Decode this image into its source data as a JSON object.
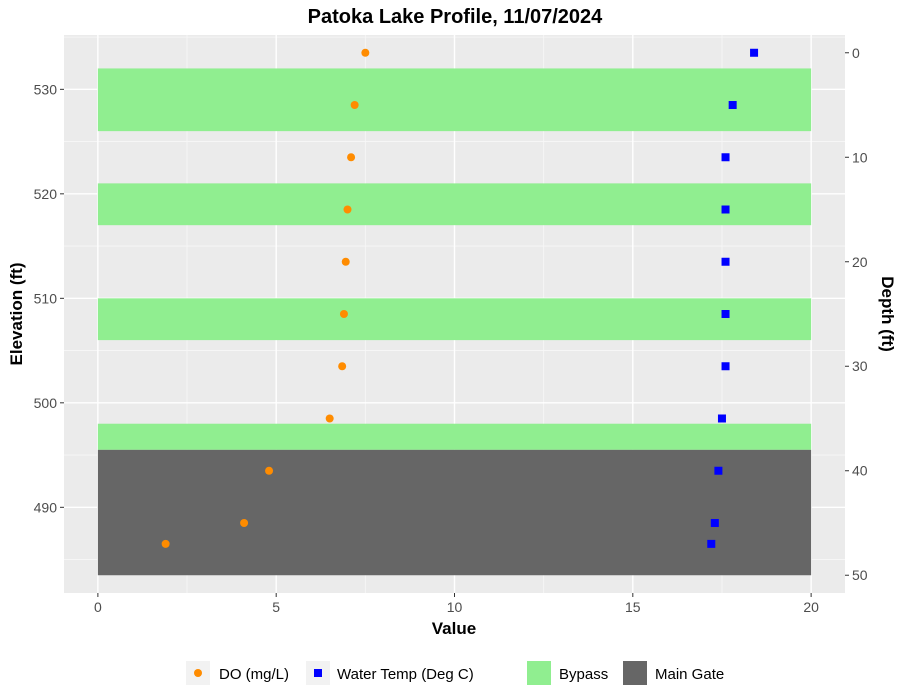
{
  "chart_data": {
    "type": "scatter",
    "title": "Patoka Lake Profile,  11/07/2024",
    "xlabel": "Value",
    "ylabel": "Elevation (ft)",
    "y2label": "Depth (ft)",
    "xlim": [
      -0.95,
      20.95
    ],
    "ylim": [
      481.8,
      535.2
    ],
    "y2lim": [
      0,
      50
    ],
    "x_ticks": [
      0,
      5,
      10,
      15,
      20
    ],
    "y_ticks": [
      490,
      500,
      510,
      520,
      530
    ],
    "y2_ticks": [
      0,
      10,
      20,
      30,
      40,
      50
    ],
    "surface_elevation": 533.5,
    "grid": true,
    "legend_position": "bottom",
    "bands": [
      {
        "name": "Bypass",
        "ymin": 526,
        "ymax": 532,
        "color": "#90EE90"
      },
      {
        "name": "Bypass",
        "ymin": 517,
        "ymax": 521,
        "color": "#90EE90"
      },
      {
        "name": "Bypass",
        "ymin": 506,
        "ymax": 510,
        "color": "#90EE90"
      },
      {
        "name": "Bypass",
        "ymin": 495.5,
        "ymax": 498,
        "color": "#90EE90"
      },
      {
        "name": "Main Gate",
        "ymin": 483.5,
        "ymax": 495.5,
        "color": "#666666"
      }
    ],
    "band_xrange": [
      0,
      20
    ],
    "series": [
      {
        "name": "DO (mg/L)",
        "color": "#FF8C00",
        "marker": "circle",
        "points": [
          {
            "x": 7.5,
            "y": 533.5
          },
          {
            "x": 7.2,
            "y": 528.5
          },
          {
            "x": 7.1,
            "y": 523.5
          },
          {
            "x": 7.0,
            "y": 518.5
          },
          {
            "x": 6.95,
            "y": 513.5
          },
          {
            "x": 6.9,
            "y": 508.5
          },
          {
            "x": 6.85,
            "y": 503.5
          },
          {
            "x": 6.5,
            "y": 498.5
          },
          {
            "x": 4.8,
            "y": 493.5
          },
          {
            "x": 4.1,
            "y": 488.5
          },
          {
            "x": 1.9,
            "y": 486.5
          }
        ]
      },
      {
        "name": "Water Temp (Deg C)",
        "color": "#0000FF",
        "marker": "square",
        "points": [
          {
            "x": 18.4,
            "y": 533.5
          },
          {
            "x": 17.8,
            "y": 528.5
          },
          {
            "x": 17.6,
            "y": 523.5
          },
          {
            "x": 17.6,
            "y": 518.5
          },
          {
            "x": 17.6,
            "y": 513.5
          },
          {
            "x": 17.6,
            "y": 508.5
          },
          {
            "x": 17.6,
            "y": 503.5
          },
          {
            "x": 17.5,
            "y": 498.5
          },
          {
            "x": 17.4,
            "y": 493.5
          },
          {
            "x": 17.3,
            "y": 488.5
          },
          {
            "x": 17.2,
            "y": 486.5
          }
        ]
      }
    ],
    "legend": [
      {
        "label": "DO (mg/L)",
        "kind": "point",
        "marker": "circle",
        "color": "#FF8C00"
      },
      {
        "label": "Water Temp (Deg C)",
        "kind": "point",
        "marker": "square",
        "color": "#0000FF"
      },
      {
        "label": "Bypass",
        "kind": "fill",
        "color": "#90EE90"
      },
      {
        "label": "Main Gate",
        "kind": "fill",
        "color": "#666666"
      }
    ]
  }
}
